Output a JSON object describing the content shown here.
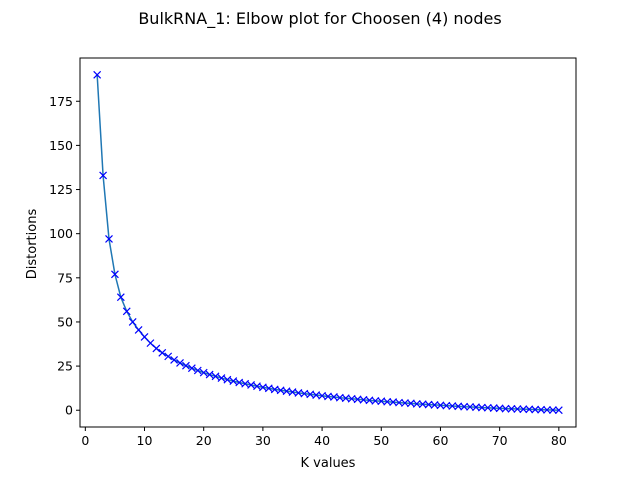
{
  "chart_data": {
    "type": "line",
    "title": "BulkRNA_1: Elbow plot for Choosen (4) nodes",
    "xlabel": "K values",
    "ylabel": "Distortions",
    "xlim": [
      -0.9,
      82.9
    ],
    "ylim": [
      -9.5,
      199.5
    ],
    "xticks": [
      0,
      10,
      20,
      30,
      40,
      50,
      60,
      70,
      80
    ],
    "yticks": [
      0,
      25,
      50,
      75,
      100,
      125,
      150,
      175
    ],
    "grid": false,
    "line_color": "#1f77b4",
    "marker": "x",
    "marker_color": "#0000ff",
    "series": [
      {
        "x": [
          2,
          3,
          4,
          5,
          6,
          7,
          8,
          9,
          10,
          11,
          12,
          13,
          14,
          15,
          16,
          17,
          18,
          19,
          20,
          21,
          22,
          23,
          24,
          25,
          26,
          27,
          28,
          29,
          30,
          31,
          32,
          33,
          34,
          35,
          36,
          37,
          38,
          39,
          40,
          41,
          42,
          43,
          44,
          45,
          46,
          47,
          48,
          49,
          50,
          51,
          52,
          53,
          54,
          55,
          56,
          57,
          58,
          59,
          60,
          61,
          62,
          63,
          64,
          65,
          66,
          67,
          68,
          69,
          70,
          71,
          72,
          73,
          74,
          75,
          76,
          77,
          78,
          79,
          80
        ],
        "values": [
          190,
          133,
          97,
          77,
          64,
          56,
          50,
          45.5,
          41.5,
          38,
          35,
          32.5,
          30.5,
          28.5,
          26.8,
          25.2,
          23.8,
          22.5,
          21.3,
          20.2,
          19.2,
          18.2,
          17.3,
          16.5,
          15.7,
          15,
          14.3,
          13.6,
          13,
          12.4,
          11.8,
          11.3,
          10.8,
          10.3,
          9.8,
          9.4,
          9,
          8.6,
          8.2,
          7.8,
          7.5,
          7.1,
          6.8,
          6.5,
          6.2,
          5.9,
          5.6,
          5.3,
          5.1,
          4.8,
          4.6,
          4.3,
          4.1,
          3.9,
          3.6,
          3.4,
          3.2,
          3,
          2.8,
          2.6,
          2.4,
          2.2,
          2,
          1.9,
          1.7,
          1.5,
          1.4,
          1.2,
          1.1,
          0.9,
          0.8,
          0.7,
          0.6,
          0.5,
          0.4,
          0.3,
          0.2,
          0.1,
          0
        ]
      }
    ]
  }
}
